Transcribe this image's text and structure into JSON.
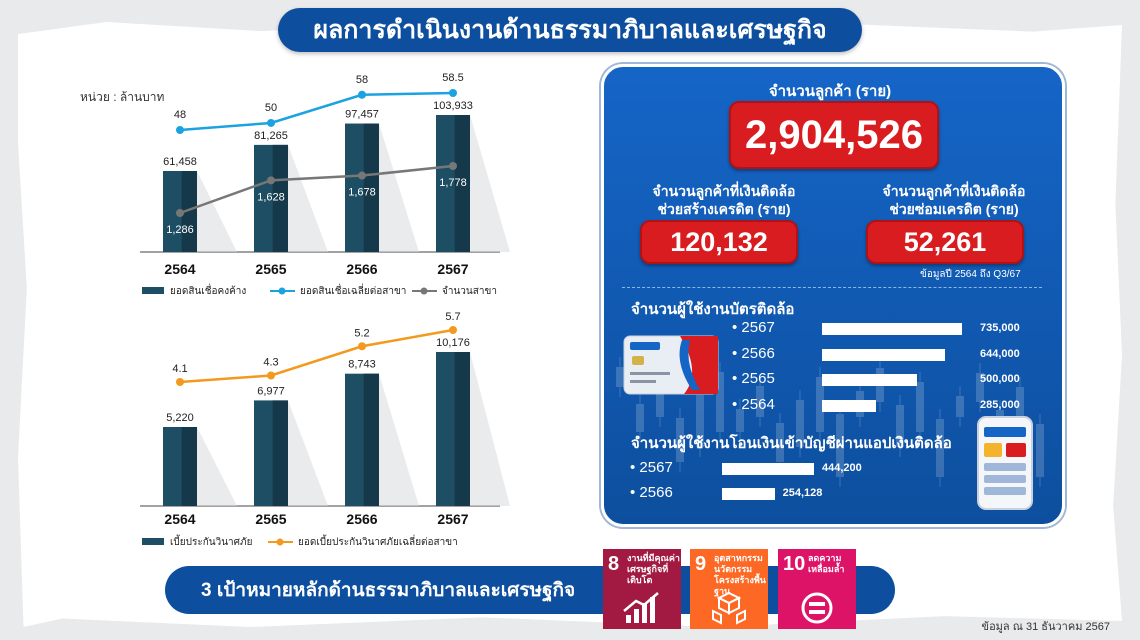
{
  "title": "ผลการดำเนินงานด้านธรรมาภิบาลและเศรษฐกิจ",
  "unit_label": "หน่วย : ล้านบาท",
  "chart_data": [
    {
      "type": "bar",
      "categories": [
        "2564",
        "2565",
        "2566",
        "2567"
      ],
      "series": [
        {
          "name": "ยอดสินเชื่อคงค้าง",
          "type": "bar",
          "values": [
            61458,
            81265,
            97457,
            103933
          ],
          "labels": [
            "61,458",
            "81,265",
            "97,457",
            "103,933"
          ]
        },
        {
          "name": "ยอดสินเชื่อเฉลี่ยต่อสาขา",
          "type": "line",
          "values": [
            48,
            50,
            58,
            58.5
          ],
          "labels": [
            "48",
            "50",
            "58",
            "58.5"
          ]
        },
        {
          "name": "จำนวนสาขา",
          "type": "line",
          "values": [
            1286,
            1628,
            1678,
            1778
          ],
          "labels": [
            "1,286",
            "1,628",
            "1,678",
            "1,778"
          ]
        }
      ],
      "colors": {
        "bar": "#1d4e63",
        "line_avg": "#1aa3e0",
        "line_branch": "#777777"
      }
    },
    {
      "type": "bar",
      "categories": [
        "2564",
        "2565",
        "2566",
        "2567"
      ],
      "series": [
        {
          "name": "เบี้ยประกันวินาศภัย",
          "type": "bar",
          "values": [
            5220,
            6977,
            8743,
            10176
          ],
          "labels": [
            "5,220",
            "6,977",
            "8,743",
            "10,176"
          ]
        },
        {
          "name": "ยอดเบี้ยประกันวินาศภัยเฉลี่ยต่อสาขา",
          "type": "line",
          "values": [
            4.1,
            4.3,
            5.2,
            5.7
          ],
          "labels": [
            "4.1",
            "4.3",
            "5.2",
            "5.7"
          ]
        }
      ],
      "colors": {
        "bar": "#1d4e63",
        "line": "#f39a1e"
      }
    }
  ],
  "panel": {
    "customers_title": "จำนวนลูกค้า (ราย)",
    "customers_value": "2,904,526",
    "credit_build_title_1": "จำนวนลูกค้าที่เงินติดล้อ",
    "credit_build_title_2": "ช่วยสร้างเครดิต (ราย)",
    "credit_build_value": "120,132",
    "credit_repair_title_1": "จำนวนลูกค้าที่เงินติดล้อ",
    "credit_repair_title_2": "ช่วยซ่อมเครดิต (ราย)",
    "credit_repair_value": "52,261",
    "data_note": "ข้อมูลปี 2564 ถึง Q3/67",
    "card_users_title": "จำนวนผู้ใช้งานบัตรติดล้อ",
    "card_users": [
      {
        "year": "2567",
        "value": 735000,
        "label": "735,000"
      },
      {
        "year": "2566",
        "value": 644000,
        "label": "644,000"
      },
      {
        "year": "2565",
        "value": 500000,
        "label": "500,000"
      },
      {
        "year": "2564",
        "value": 285000,
        "label": "285,000"
      }
    ],
    "transfer_title": "จำนวนผู้ใช้งานโอนเงินเข้าบัญชีผ่านแอปเงินติดล้อ",
    "transfer_users": [
      {
        "year": "2567",
        "value": 444200,
        "label": "444,200"
      },
      {
        "year": "2566",
        "value": 254128,
        "label": "254,128"
      }
    ]
  },
  "bottom_title": "3 เป้าหมายหลักด้านธรรมาภิบาลและเศรษฐกิจ",
  "sdgs": [
    {
      "num": "8",
      "line1": "งานที่มีคุณค่า",
      "line2": "เศรษฐกิจที่เติบโต",
      "line3": "",
      "color": "#a21942",
      "icon": "growth-chart-icon"
    },
    {
      "num": "9",
      "line1": "อุตสาหกรรม",
      "line2": "นวัตกรรม",
      "line3": "โครงสร้างพื้นฐาน",
      "color": "#fd6925",
      "icon": "cubes-icon"
    },
    {
      "num": "10",
      "line1": "ลดความ",
      "line2": "เหลื่อมล้ำ",
      "line3": "",
      "color": "#dd1367",
      "icon": "equality-icon"
    }
  ],
  "footer_note": "ข้อมูล ณ 31 ธันวาคม 2567"
}
